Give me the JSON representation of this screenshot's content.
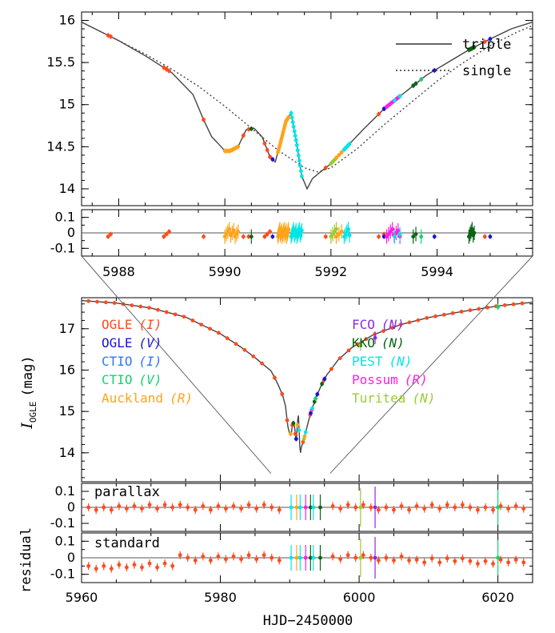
{
  "chart_data": [
    {
      "type": "line",
      "panel": "zoom",
      "xlim": [
        5987.3,
        5995.8
      ],
      "ylim": [
        16.1,
        13.8
      ],
      "yticks": [
        "14",
        "14.5",
        "15",
        "15.5",
        "16"
      ],
      "ytick_values": [
        14,
        14.5,
        15,
        15.5,
        16
      ],
      "legend": {
        "placement": "top-right",
        "entries": [
          "triple",
          "single"
        ]
      },
      "series": [
        {
          "name": "triple",
          "style": "solid",
          "x": [
            5987.3,
            5988.0,
            5988.5,
            5989.0,
            5989.4,
            5989.6,
            5989.75,
            5989.9,
            5990.0,
            5990.1,
            5990.25,
            5990.4,
            5990.55,
            5990.7,
            5990.85,
            5990.95,
            5991.05,
            5991.15,
            5991.25,
            5991.35,
            5991.45,
            5991.55,
            5991.65,
            5991.8,
            5992.0,
            5992.3,
            5992.6,
            5993.0,
            5993.4,
            5993.8,
            5994.2,
            5994.6,
            5995.0,
            5995.4,
            5995.8
          ],
          "y": [
            15.98,
            15.76,
            15.58,
            15.38,
            15.12,
            14.82,
            14.62,
            14.52,
            14.45,
            14.45,
            14.5,
            14.7,
            14.72,
            14.62,
            14.38,
            14.32,
            14.55,
            14.8,
            14.9,
            14.55,
            14.15,
            14.0,
            14.12,
            14.2,
            14.3,
            14.5,
            14.7,
            14.95,
            15.15,
            15.35,
            15.5,
            15.65,
            15.78,
            15.9,
            15.98
          ]
        },
        {
          "name": "single",
          "style": "dotted",
          "x": [
            5987.3,
            5988.0,
            5988.5,
            5989.0,
            5989.5,
            5990.0,
            5990.5,
            5991.0,
            5991.5,
            5991.75,
            5992.0,
            5992.5,
            5993.0,
            5993.5,
            5994.0,
            5994.5,
            5995.0,
            5995.5,
            5995.8
          ],
          "y": [
            15.98,
            15.76,
            15.6,
            15.42,
            15.22,
            14.98,
            14.72,
            14.46,
            14.25,
            14.2,
            14.25,
            14.48,
            14.76,
            15.02,
            15.28,
            15.5,
            15.7,
            15.86,
            15.94
          ]
        }
      ]
    },
    {
      "type": "scatter",
      "panel": "zoom-residual",
      "xlim": [
        5987.3,
        5995.8
      ],
      "ylim": [
        0.15,
        -0.15
      ],
      "yticks": [
        "0.1",
        "0",
        "-0.1"
      ],
      "ytick_values": [
        0.1,
        0,
        -0.1
      ],
      "xticks": [
        "5988",
        "5990",
        "5992",
        "5994"
      ],
      "xtick_values": [
        5988,
        5990,
        5992,
        5994
      ]
    },
    {
      "type": "line",
      "panel": "main",
      "xlim": [
        5960,
        6025
      ],
      "ylim": [
        17.75,
        13.3
      ],
      "ylabel": "I",
      "ylabel_sub": "OGLE",
      "ylabel_unit": "(mag)",
      "yticks": [
        "14",
        "15",
        "16",
        "17"
      ],
      "ytick_values": [
        14,
        15,
        16,
        17
      ],
      "legend": [
        {
          "name": "OGLE",
          "filter": "(I)",
          "color": "#ff4a1c"
        },
        {
          "name": "OGLE",
          "filter": "(V)",
          "color": "#1a14dc"
        },
        {
          "name": "CTIO",
          "filter": "(I)",
          "color": "#2e78ff"
        },
        {
          "name": "CTIO",
          "filter": "(V)",
          "color": "#14d26e"
        },
        {
          "name": "Auckland",
          "filter": "(R)",
          "color": "#ffa31a"
        },
        {
          "name": "FCO",
          "filter": "(N)",
          "color": "#8a2be2"
        },
        {
          "name": "KKO",
          "filter": "(N)",
          "color": "#0a6414"
        },
        {
          "name": "PEST",
          "filter": "(N)",
          "color": "#00e6e6"
        },
        {
          "name": "Possum",
          "filter": "(R)",
          "color": "#ff1ee6"
        },
        {
          "name": "Turitea",
          "filter": "(N)",
          "color": "#9acd32"
        }
      ],
      "zoom_box": {
        "x": [
          5987.3,
          5995.8
        ],
        "y": [
          13.5,
          16.15
        ]
      }
    },
    {
      "type": "scatter",
      "panel": "residual-parallax",
      "label": "parallax",
      "xlim": [
        5960,
        6025
      ],
      "ylim": [
        0.15,
        -0.15
      ],
      "yticks": [
        "0.1",
        "0",
        "-0.1"
      ],
      "ytick_values": [
        0.1,
        0,
        -0.1
      ]
    },
    {
      "type": "scatter",
      "panel": "residual-standard",
      "label": "standard",
      "xlim": [
        5960,
        6025
      ],
      "ylim": [
        0.15,
        -0.15
      ],
      "yticks": [
        "0.1",
        "0",
        "-0.1"
      ],
      "ytick_values": [
        0.1,
        0,
        -0.1
      ],
      "xticks": [
        "5960",
        "5980",
        "6000",
        "6020"
      ],
      "xtick_values": [
        5960,
        5980,
        6000,
        6020
      ],
      "xlabel": "HJD−2450000",
      "ylabel": "residual"
    }
  ]
}
